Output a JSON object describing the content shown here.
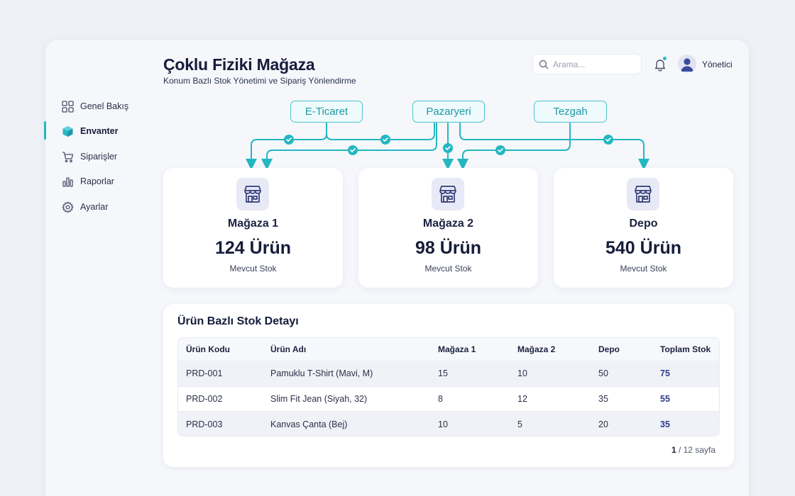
{
  "header": {
    "title": "Çoklu Fiziki Mağaza",
    "subtitle": "Konum Bazlı Stok Yönetimi ve Sipariş Yönlendirme",
    "search_placeholder": "Arama...",
    "user_name": "Yönetici"
  },
  "sidebar": {
    "items": [
      {
        "label": "Genel Bakış",
        "icon": "grid-icon"
      },
      {
        "label": "Envanter",
        "icon": "box-icon",
        "active": true
      },
      {
        "label": "Siparişler",
        "icon": "cart-icon"
      },
      {
        "label": "Raporlar",
        "icon": "bar-chart-icon"
      },
      {
        "label": "Ayarlar",
        "icon": "gear-icon"
      }
    ]
  },
  "channels": [
    "E-Ticaret",
    "Pazaryeri",
    "Tezgah"
  ],
  "stores": [
    {
      "name": "Mağaza 1",
      "count": "124 Ürün",
      "sub": "Mevcut Stok"
    },
    {
      "name": "Mağaza 2",
      "count": "98 Ürün",
      "sub": "Mevcut Stok"
    },
    {
      "name": "Depo",
      "count": "540 Ürün",
      "sub": "Mevcut Stok"
    }
  ],
  "table": {
    "title": "Ürün Bazlı Stok Detayı",
    "columns": [
      "Ürün Kodu",
      "Ürün Adı",
      "Mağaza 1",
      "Mağaza 2",
      "Depo",
      "Toplam Stok"
    ],
    "rows": [
      [
        "PRD-001",
        "Pamuklu T-Shirt (Mavi, M)",
        "15",
        "10",
        "50",
        "75"
      ],
      [
        "PRD-002",
        "Slim Fit Jean (Siyah, 32)",
        "8",
        "12",
        "35",
        "55"
      ],
      [
        "PRD-003",
        "Kanvas Çanta (Bej)",
        "10",
        "5",
        "20",
        "35"
      ]
    ]
  },
  "pagination": {
    "current": "1",
    "rest": " / 12 sayfa"
  },
  "colors": {
    "accent": "#23b7c2",
    "total": "#2f3b8c"
  }
}
